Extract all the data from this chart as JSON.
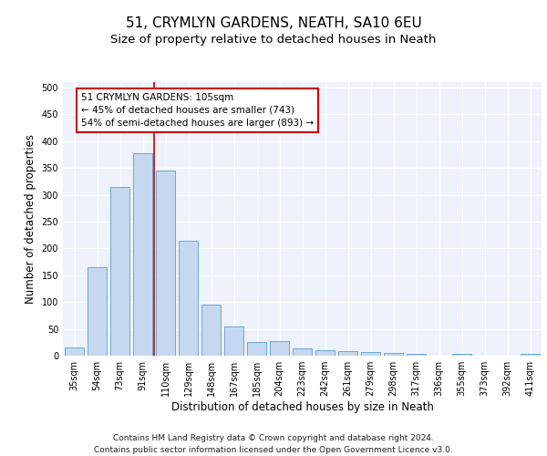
{
  "title1": "51, CRYMLYN GARDENS, NEATH, SA10 6EU",
  "title2": "Size of property relative to detached houses in Neath",
  "xlabel": "Distribution of detached houses by size in Neath",
  "ylabel": "Number of detached properties",
  "categories": [
    "35sqm",
    "54sqm",
    "73sqm",
    "91sqm",
    "110sqm",
    "129sqm",
    "148sqm",
    "167sqm",
    "185sqm",
    "204sqm",
    "223sqm",
    "242sqm",
    "261sqm",
    "279sqm",
    "298sqm",
    "317sqm",
    "336sqm",
    "355sqm",
    "373sqm",
    "392sqm",
    "411sqm"
  ],
  "values": [
    15,
    165,
    315,
    378,
    345,
    215,
    95,
    55,
    25,
    28,
    14,
    11,
    9,
    7,
    5,
    4,
    0,
    4,
    0,
    0,
    4
  ],
  "bar_color": "#c5d8f0",
  "bar_edge_color": "#6aaad4",
  "vline_color": "#cc0000",
  "annotation_text": "51 CRYMLYN GARDENS: 105sqm\n← 45% of detached houses are smaller (743)\n54% of semi-detached houses are larger (893) →",
  "annotation_box_color": "white",
  "annotation_box_edge": "#cc0000",
  "ylim": [
    0,
    510
  ],
  "yticks": [
    0,
    50,
    100,
    150,
    200,
    250,
    300,
    350,
    400,
    450,
    500
  ],
  "footer": "Contains HM Land Registry data © Crown copyright and database right 2024.\nContains public sector information licensed under the Open Government Licence v3.0.",
  "bg_color": "#edf2fb",
  "grid_color": "#ffffff",
  "title1_fontsize": 11,
  "title2_fontsize": 9.5,
  "axis_label_fontsize": 8.5,
  "tick_fontsize": 7,
  "annotation_fontsize": 7.5,
  "footer_fontsize": 6.5
}
